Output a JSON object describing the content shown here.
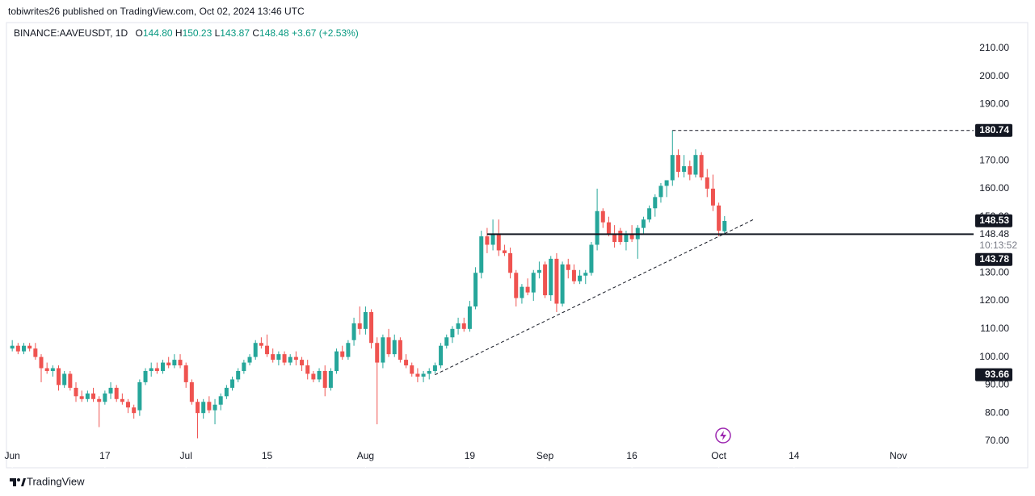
{
  "chart_data": {
    "type": "candlestick",
    "published": "tobiwrites26 published on TradingView.com, Oct 02, 2024 13:46 UTC",
    "symbol": "BINANCE:AAVEUSDT, 1D",
    "legend": [
      {
        "key": "O",
        "value": "144.80"
      },
      {
        "key": "H",
        "value": "150.23"
      },
      {
        "key": "L",
        "value": "143.87"
      },
      {
        "key": "C",
        "value": "148.48"
      }
    ],
    "change": "+3.67 (+2.53%)",
    "brand": "TradingView",
    "up_color": "#26a69a",
    "down_color": "#ef5350",
    "x": [
      "2024-06-01",
      "2024-06-02",
      "2024-06-03",
      "2024-06-04",
      "2024-06-05",
      "2024-06-06",
      "2024-06-07",
      "2024-06-08",
      "2024-06-09",
      "2024-06-10",
      "2024-06-11",
      "2024-06-12",
      "2024-06-13",
      "2024-06-14",
      "2024-06-15",
      "2024-06-16",
      "2024-06-17",
      "2024-06-18",
      "2024-06-19",
      "2024-06-20",
      "2024-06-21",
      "2024-06-22",
      "2024-06-23",
      "2024-06-24",
      "2024-06-25",
      "2024-06-26",
      "2024-06-27",
      "2024-06-28",
      "2024-06-29",
      "2024-06-30",
      "2024-07-01",
      "2024-07-02",
      "2024-07-03",
      "2024-07-04",
      "2024-07-05",
      "2024-07-06",
      "2024-07-07",
      "2024-07-08",
      "2024-07-09",
      "2024-07-10",
      "2024-07-11",
      "2024-07-12",
      "2024-07-13",
      "2024-07-14",
      "2024-07-15",
      "2024-07-16",
      "2024-07-17",
      "2024-07-18",
      "2024-07-19",
      "2024-07-20",
      "2024-07-21",
      "2024-07-22",
      "2024-07-23",
      "2024-07-24",
      "2024-07-25",
      "2024-07-26",
      "2024-07-27",
      "2024-07-28",
      "2024-07-29",
      "2024-07-30",
      "2024-07-31",
      "2024-08-01",
      "2024-08-02",
      "2024-08-03",
      "2024-08-04",
      "2024-08-05",
      "2024-08-06",
      "2024-08-07",
      "2024-08-08",
      "2024-08-09",
      "2024-08-10",
      "2024-08-11",
      "2024-08-12",
      "2024-08-13",
      "2024-08-14",
      "2024-08-15",
      "2024-08-16",
      "2024-08-17",
      "2024-08-18",
      "2024-08-19",
      "2024-08-20",
      "2024-08-21",
      "2024-08-22",
      "2024-08-23",
      "2024-08-24",
      "2024-08-25",
      "2024-08-26",
      "2024-08-27",
      "2024-08-28",
      "2024-08-29",
      "2024-08-30",
      "2024-08-31",
      "2024-09-01",
      "2024-09-02",
      "2024-09-03",
      "2024-09-04",
      "2024-09-05",
      "2024-09-06",
      "2024-09-07",
      "2024-09-08",
      "2024-09-09",
      "2024-09-10",
      "2024-09-11",
      "2024-09-12",
      "2024-09-13",
      "2024-09-14",
      "2024-09-15",
      "2024-09-16",
      "2024-09-17",
      "2024-09-18",
      "2024-09-19",
      "2024-09-20",
      "2024-09-21",
      "2024-09-22",
      "2024-09-23",
      "2024-09-24",
      "2024-09-25",
      "2024-09-26",
      "2024-09-27",
      "2024-09-28",
      "2024-09-29",
      "2024-09-30",
      "2024-10-01",
      "2024-10-02"
    ],
    "open": [
      103,
      104,
      102,
      104,
      103,
      100,
      96,
      95,
      96,
      90,
      94,
      89,
      86,
      85,
      87,
      85,
      84,
      87,
      89,
      85,
      84,
      82,
      81,
      91,
      95,
      96,
      95,
      98,
      97,
      99,
      97,
      91,
      84,
      80,
      84,
      81,
      83,
      86,
      89,
      92,
      95,
      98,
      100,
      105,
      104,
      101,
      99,
      101,
      98,
      100,
      99,
      97,
      94,
      92,
      95,
      89,
      95,
      102,
      100,
      106,
      112,
      110,
      116,
      105,
      98,
      107,
      101,
      106,
      99,
      97,
      94,
      93,
      94,
      95,
      97,
      104,
      107,
      110,
      112,
      110,
      118,
      130,
      143,
      140,
      144,
      138,
      137,
      130,
      121,
      125,
      123,
      130,
      133,
      122,
      135,
      119,
      133,
      131,
      127,
      129,
      130,
      140,
      152,
      148,
      144,
      145,
      141,
      144,
      142,
      146,
      149,
      153,
      157,
      161,
      163,
      172,
      166,
      168,
      165,
      172,
      164,
      160,
      154,
      144.8
    ],
    "high": [
      106,
      105,
      105,
      105,
      105,
      101,
      98,
      97,
      97,
      95,
      95,
      91,
      88,
      88,
      89,
      86,
      88,
      91,
      90,
      87,
      85,
      83,
      92,
      96,
      98,
      98,
      99,
      100,
      101,
      101,
      98,
      92,
      85,
      85,
      86,
      85,
      87,
      90,
      93,
      96,
      99,
      101,
      106,
      107,
      108,
      103,
      102,
      102,
      101,
      102,
      100,
      99,
      95,
      96,
      97,
      96,
      103,
      104,
      106,
      114,
      118,
      118,
      117,
      107,
      108,
      110,
      108,
      107,
      101,
      98,
      96,
      95,
      96,
      98,
      105,
      108,
      111,
      114,
      114,
      120,
      132,
      145,
      146,
      149,
      149,
      140,
      139,
      131,
      126,
      128,
      131,
      134,
      134,
      136,
      137,
      134,
      135,
      133,
      131,
      131,
      141,
      160,
      153,
      150,
      147,
      146,
      145,
      147,
      147,
      150,
      154,
      158,
      162,
      163,
      180.74,
      174,
      172,
      170,
      174,
      173,
      167,
      165,
      155,
      150.23
    ],
    "low": [
      102,
      101,
      101,
      102,
      99,
      91,
      94,
      93,
      88,
      89,
      88,
      84,
      84,
      84,
      84,
      75,
      83,
      85,
      84,
      83,
      80,
      78,
      79,
      90,
      93,
      94,
      94,
      96,
      96,
      96,
      89,
      83,
      71,
      78,
      80,
      76,
      81,
      85,
      88,
      91,
      94,
      97,
      99,
      103,
      100,
      98,
      97,
      97,
      97,
      97,
      95,
      92,
      91,
      91,
      86,
      88,
      94,
      99,
      99,
      104,
      108,
      108,
      103,
      76,
      96,
      100,
      100,
      98,
      96,
      93,
      91,
      91,
      92,
      94,
      96,
      103,
      105,
      108,
      109,
      109,
      117,
      128,
      137,
      138,
      136,
      136,
      128,
      118,
      119,
      122,
      120,
      128,
      121,
      120,
      116,
      118,
      128,
      126,
      126,
      126,
      129,
      138,
      146,
      143,
      139,
      140,
      138,
      141,
      135,
      144,
      148,
      150,
      155,
      157,
      161,
      164,
      164,
      163,
      164,
      163,
      157,
      152,
      143,
      143.87
    ],
    "close": [
      104,
      102,
      104,
      103,
      100,
      96,
      95,
      96,
      90,
      94,
      89,
      86,
      85,
      87,
      85,
      84,
      87,
      89,
      85,
      84,
      82,
      80,
      91,
      95,
      96,
      95,
      98,
      97,
      99,
      97,
      91,
      84,
      80,
      84,
      81,
      83,
      86,
      89,
      92,
      95,
      98,
      100,
      105,
      104,
      101,
      99,
      101,
      98,
      100,
      99,
      97,
      94,
      92,
      95,
      89,
      95,
      102,
      100,
      105,
      112,
      110,
      116,
      105,
      98,
      107,
      101,
      106,
      99,
      97,
      94,
      93,
      94,
      95,
      97,
      104,
      107,
      110,
      112,
      110,
      118,
      130,
      143,
      140,
      144,
      138,
      137,
      130,
      121,
      125,
      123,
      130,
      131,
      122,
      135,
      119,
      133,
      131,
      127,
      129,
      130,
      140,
      152,
      148,
      144,
      141,
      141,
      144,
      142,
      146,
      149,
      153,
      157,
      161,
      163,
      172,
      166,
      168,
      165,
      172,
      164,
      160,
      154,
      145,
      148.48
    ],
    "xlim": [
      "2024-05-31",
      "2024-11-14"
    ],
    "xticks": [
      {
        "value": "2024-06-01",
        "label": "Jun"
      },
      {
        "value": "2024-06-17",
        "label": "17"
      },
      {
        "value": "2024-07-01",
        "label": "Jul"
      },
      {
        "value": "2024-07-15",
        "label": "15"
      },
      {
        "value": "2024-08-01",
        "label": "Aug"
      },
      {
        "value": "2024-08-19",
        "label": "19"
      },
      {
        "value": "2024-09-01",
        "label": "Sep"
      },
      {
        "value": "2024-09-16",
        "label": "16"
      },
      {
        "value": "2024-10-01",
        "label": "Oct"
      },
      {
        "value": "2024-10-14",
        "label": "14"
      },
      {
        "value": "2024-11-01",
        "label": "Nov"
      }
    ],
    "ylim": [
      60.5,
      219.2
    ],
    "yticks": [
      {
        "value": 70,
        "label": "70.00"
      },
      {
        "value": 80,
        "label": "80.00"
      },
      {
        "value": 90,
        "label": "90.00"
      },
      {
        "value": 100,
        "label": "100.00"
      },
      {
        "value": 110,
        "label": "110.00"
      },
      {
        "value": 120,
        "label": "120.00"
      },
      {
        "value": 130,
        "label": "130.00"
      },
      {
        "value": 140,
        "label": "140.00"
      },
      {
        "value": 150,
        "label": "150.00"
      },
      {
        "value": 160,
        "label": "160.00"
      },
      {
        "value": 170,
        "label": "170.00"
      },
      {
        "value": 180,
        "label": "180.00"
      },
      {
        "value": 190,
        "label": "190.00"
      },
      {
        "value": 200,
        "label": "200.00"
      },
      {
        "value": 210,
        "label": "210.00"
      }
    ],
    "hlines": [
      {
        "value": 180.74,
        "start": "2024-09-23",
        "style": "dashed"
      },
      {
        "value": 143.78,
        "start": "2024-08-22",
        "style": "solid"
      }
    ],
    "trendline": {
      "start": "2024-08-13",
      "start_value": 93.66,
      "end": "2024-10-07",
      "end_value": 149,
      "style": "dashed"
    },
    "price_labels": [
      {
        "value": 180.74,
        "label": "180.74",
        "style": "dark"
      },
      {
        "value": 148.53,
        "label": "148.53",
        "style": "dark"
      },
      {
        "value": 148.48,
        "label": "148.48",
        "countdown": "10:13:52",
        "style": "light"
      },
      {
        "value": 143.78,
        "label": "143.78",
        "style": "dark"
      },
      {
        "value": 93.66,
        "label": "93.66",
        "style": "dark"
      }
    ]
  }
}
